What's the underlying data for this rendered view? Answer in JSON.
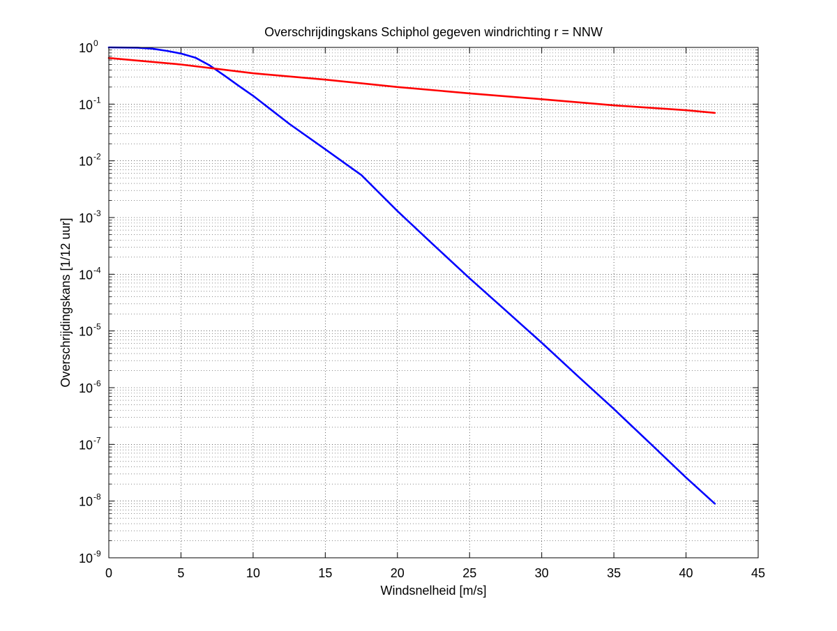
{
  "chart_data": {
    "type": "line",
    "title": "Overschrijdingskans Schiphol gegeven windrichting r = NNW",
    "xlabel": "Windsnelheid [m/s]",
    "ylabel": "Overschrijdingskans [1/12 uur]",
    "xlim": [
      0,
      45
    ],
    "ylim": [
      1e-09,
      1
    ],
    "yscale": "log",
    "grid": "major and minor (dotted)",
    "x_ticks": [
      0,
      5,
      10,
      15,
      20,
      25,
      30,
      35,
      40,
      45
    ],
    "x_tick_labels": [
      "0",
      "5",
      "10",
      "15",
      "20",
      "25",
      "30",
      "35",
      "40",
      "45"
    ],
    "y_ticks": [
      {
        "value": 1e-09,
        "base": "10",
        "exp": "-9"
      },
      {
        "value": 1e-08,
        "base": "10",
        "exp": "-8"
      },
      {
        "value": 1e-07,
        "base": "10",
        "exp": "-7"
      },
      {
        "value": 1e-06,
        "base": "10",
        "exp": "-6"
      },
      {
        "value": 1e-05,
        "base": "10",
        "exp": "-5"
      },
      {
        "value": 0.0001,
        "base": "10",
        "exp": "-4"
      },
      {
        "value": 0.001,
        "base": "10",
        "exp": "-3"
      },
      {
        "value": 0.01,
        "base": "10",
        "exp": "-2"
      },
      {
        "value": 0.1,
        "base": "10",
        "exp": "-1"
      },
      {
        "value": 1,
        "base": "10",
        "exp": "0"
      }
    ],
    "series": [
      {
        "color": "#0000ff",
        "x": [
          0,
          2,
          3,
          4,
          5,
          6,
          7,
          8,
          9,
          10,
          12.5,
          15,
          17.5,
          20,
          22.5,
          25,
          27.5,
          30,
          32.5,
          35,
          37.5,
          40,
          42
        ],
        "y": [
          1.0,
          0.99,
          0.95,
          0.87,
          0.78,
          0.66,
          0.48,
          0.32,
          0.21,
          0.14,
          0.045,
          0.016,
          0.0056,
          0.0013,
          0.00033,
          8.5e-05,
          2.3e-05,
          6.2e-06,
          1.6e-06,
          4.2e-07,
          1.05e-07,
          2.6e-08,
          9e-09
        ]
      },
      {
        "color": "#ff0000",
        "x": [
          0,
          5,
          10,
          15,
          20,
          25,
          30,
          35,
          40,
          42
        ],
        "y": [
          0.65,
          0.5,
          0.35,
          0.27,
          0.2,
          0.155,
          0.122,
          0.095,
          0.078,
          0.07
        ]
      }
    ]
  }
}
